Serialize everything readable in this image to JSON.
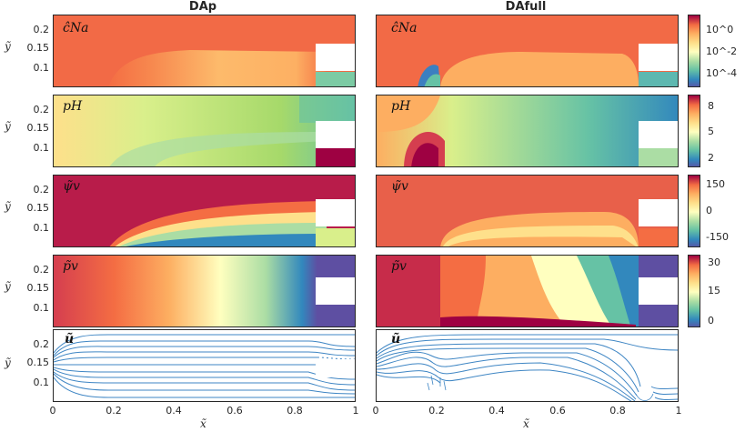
{
  "column_titles": [
    "DAp",
    "DAfull"
  ],
  "y_axis_label": "ỹ",
  "x_axis_label": "x̃",
  "y_ticks": [
    "0.2",
    "0.15",
    "0.1"
  ],
  "x_ticks": [
    "0",
    "0.2",
    "0.4",
    "0.6",
    "0.8",
    "1"
  ],
  "rows": [
    {
      "label": "ĉNa",
      "colorbar_ticks": [
        "10^0",
        "10^-2",
        "10^-4"
      ]
    },
    {
      "label": "pH",
      "colorbar_ticks": [
        "8",
        "5",
        "2"
      ]
    },
    {
      "label": "ψ̃v",
      "colorbar_ticks": [
        "150",
        "0",
        "-150"
      ]
    },
    {
      "label": "p̃v",
      "colorbar_ticks": [
        "30",
        "15",
        "0"
      ]
    },
    {
      "label": "ũ",
      "colorbar_ticks": []
    }
  ],
  "chart_data": {
    "type": "heatmap",
    "x_range": [
      0,
      1
    ],
    "y_range": [
      0.05,
      0.23
    ],
    "colormap": "Spectral (reversed)",
    "fields": [
      {
        "name": "ĉNa",
        "scale": "log",
        "range": [
          "10^-4",
          "10^0"
        ]
      },
      {
        "name": "pH",
        "range": [
          2,
          8
        ]
      },
      {
        "name": "ψ̃v",
        "range": [
          -150,
          150
        ]
      },
      {
        "name": "p̃v",
        "range": [
          0,
          30
        ]
      },
      {
        "name": "ũ",
        "type": "streamlines"
      }
    ]
  },
  "colors": {
    "streamline": "#3f86c4",
    "axis": "#262626"
  }
}
